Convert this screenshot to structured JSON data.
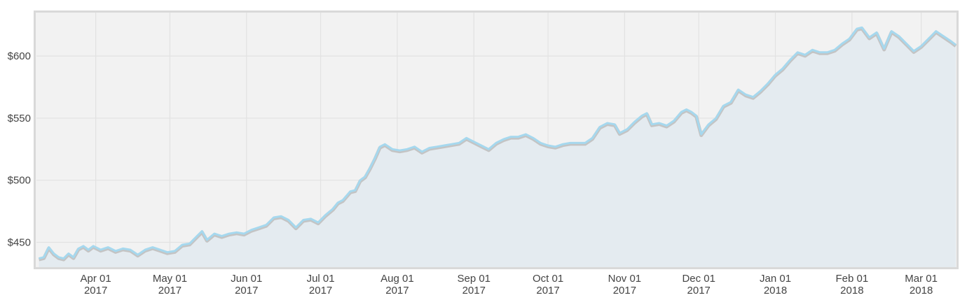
{
  "chart_data": {
    "type": "area",
    "title": "",
    "xlabel": "",
    "ylabel": "",
    "x_range": [
      "2017-03-08",
      "2018-03-15"
    ],
    "ylim": [
      430,
      635
    ],
    "grid": true,
    "colors": {
      "line": "#a6d8ee",
      "line_shadow": "#c4c4c4",
      "fill": "#e4ebf0",
      "plot_bg": "#f2f2f2",
      "frame": "#d9d9d9",
      "grid": "#e2e2e2"
    },
    "y_ticks": [
      {
        "value": 450,
        "label": "$450"
      },
      {
        "value": 500,
        "label": "$500"
      },
      {
        "value": 550,
        "label": "$550"
      },
      {
        "value": 600,
        "label": "$600"
      }
    ],
    "x_ticks": [
      {
        "date": "2017-04-01",
        "line1": "Apr 01",
        "line2": "2017"
      },
      {
        "date": "2017-05-01",
        "line1": "May 01",
        "line2": "2017"
      },
      {
        "date": "2017-06-01",
        "line1": "Jun 01",
        "line2": "2017"
      },
      {
        "date": "2017-07-01",
        "line1": "Jul 01",
        "line2": "2017"
      },
      {
        "date": "2017-08-01",
        "line1": "Aug 01",
        "line2": "2017"
      },
      {
        "date": "2017-09-01",
        "line1": "Sep 01",
        "line2": "2017"
      },
      {
        "date": "2017-10-01",
        "line1": "Oct 01",
        "line2": "2017"
      },
      {
        "date": "2017-11-01",
        "line1": "Nov 01",
        "line2": "2017"
      },
      {
        "date": "2017-12-01",
        "line1": "Dec 01",
        "line2": "2017"
      },
      {
        "date": "2018-01-01",
        "line1": "Jan 01",
        "line2": "2018"
      },
      {
        "date": "2018-02-01",
        "line1": "Feb 01",
        "line2": "2018"
      },
      {
        "date": "2018-03-01",
        "line1": "Mar 01",
        "line2": "2018"
      }
    ],
    "series": [
      {
        "points": [
          [
            "2017-03-09",
            437
          ],
          [
            "2017-03-11",
            438
          ],
          [
            "2017-03-13",
            446
          ],
          [
            "2017-03-15",
            441
          ],
          [
            "2017-03-17",
            438
          ],
          [
            "2017-03-19",
            437
          ],
          [
            "2017-03-21",
            441
          ],
          [
            "2017-03-23",
            438
          ],
          [
            "2017-03-25",
            445
          ],
          [
            "2017-03-27",
            447
          ],
          [
            "2017-03-29",
            444
          ],
          [
            "2017-03-31",
            447
          ],
          [
            "2017-04-03",
            444
          ],
          [
            "2017-04-06",
            446
          ],
          [
            "2017-04-09",
            443
          ],
          [
            "2017-04-12",
            445
          ],
          [
            "2017-04-15",
            444
          ],
          [
            "2017-04-18",
            440
          ],
          [
            "2017-04-21",
            444
          ],
          [
            "2017-04-24",
            446
          ],
          [
            "2017-04-27",
            444
          ],
          [
            "2017-04-30",
            442
          ],
          [
            "2017-05-03",
            443
          ],
          [
            "2017-05-06",
            448
          ],
          [
            "2017-05-09",
            449
          ],
          [
            "2017-05-12",
            455
          ],
          [
            "2017-05-14",
            459
          ],
          [
            "2017-05-16",
            452
          ],
          [
            "2017-05-19",
            457
          ],
          [
            "2017-05-22",
            455
          ],
          [
            "2017-05-25",
            457
          ],
          [
            "2017-05-28",
            458
          ],
          [
            "2017-05-31",
            457
          ],
          [
            "2017-06-03",
            460
          ],
          [
            "2017-06-06",
            462
          ],
          [
            "2017-06-09",
            464
          ],
          [
            "2017-06-12",
            470
          ],
          [
            "2017-06-15",
            471
          ],
          [
            "2017-06-18",
            468
          ],
          [
            "2017-06-21",
            462
          ],
          [
            "2017-06-24",
            468
          ],
          [
            "2017-06-27",
            469
          ],
          [
            "2017-06-30",
            466
          ],
          [
            "2017-07-03",
            472
          ],
          [
            "2017-07-06",
            477
          ],
          [
            "2017-07-08",
            482
          ],
          [
            "2017-07-10",
            484
          ],
          [
            "2017-07-13",
            491
          ],
          [
            "2017-07-15",
            492
          ],
          [
            "2017-07-17",
            500
          ],
          [
            "2017-07-19",
            503
          ],
          [
            "2017-07-21",
            510
          ],
          [
            "2017-07-23",
            518
          ],
          [
            "2017-07-25",
            527
          ],
          [
            "2017-07-27",
            529
          ],
          [
            "2017-07-30",
            525
          ],
          [
            "2017-08-02",
            524
          ],
          [
            "2017-08-05",
            525
          ],
          [
            "2017-08-08",
            527
          ],
          [
            "2017-08-11",
            523
          ],
          [
            "2017-08-14",
            526
          ],
          [
            "2017-08-17",
            527
          ],
          [
            "2017-08-20",
            528
          ],
          [
            "2017-08-23",
            529
          ],
          [
            "2017-08-26",
            530
          ],
          [
            "2017-08-29",
            534
          ],
          [
            "2017-09-01",
            531
          ],
          [
            "2017-09-04",
            528
          ],
          [
            "2017-09-07",
            525
          ],
          [
            "2017-09-10",
            530
          ],
          [
            "2017-09-13",
            533
          ],
          [
            "2017-09-16",
            535
          ],
          [
            "2017-09-19",
            535
          ],
          [
            "2017-09-22",
            537
          ],
          [
            "2017-09-25",
            534
          ],
          [
            "2017-09-28",
            530
          ],
          [
            "2017-10-01",
            528
          ],
          [
            "2017-10-04",
            527
          ],
          [
            "2017-10-07",
            529
          ],
          [
            "2017-10-10",
            530
          ],
          [
            "2017-10-13",
            530
          ],
          [
            "2017-10-16",
            530
          ],
          [
            "2017-10-19",
            534
          ],
          [
            "2017-10-22",
            543
          ],
          [
            "2017-10-25",
            546
          ],
          [
            "2017-10-28",
            545
          ],
          [
            "2017-10-30",
            538
          ],
          [
            "2017-11-02",
            541
          ],
          [
            "2017-11-05",
            547
          ],
          [
            "2017-11-08",
            552
          ],
          [
            "2017-11-10",
            554
          ],
          [
            "2017-11-12",
            545
          ],
          [
            "2017-11-15",
            546
          ],
          [
            "2017-11-18",
            544
          ],
          [
            "2017-11-21",
            548
          ],
          [
            "2017-11-24",
            555
          ],
          [
            "2017-11-26",
            557
          ],
          [
            "2017-11-28",
            555
          ],
          [
            "2017-11-30",
            552
          ],
          [
            "2017-12-02",
            537
          ],
          [
            "2017-12-05",
            545
          ],
          [
            "2017-12-08",
            550
          ],
          [
            "2017-12-11",
            560
          ],
          [
            "2017-12-14",
            563
          ],
          [
            "2017-12-17",
            573
          ],
          [
            "2017-12-20",
            569
          ],
          [
            "2017-12-23",
            567
          ],
          [
            "2017-12-26",
            572
          ],
          [
            "2017-12-29",
            578
          ],
          [
            "2018-01-01",
            585
          ],
          [
            "2018-01-04",
            590
          ],
          [
            "2018-01-07",
            597
          ],
          [
            "2018-01-10",
            603
          ],
          [
            "2018-01-13",
            601
          ],
          [
            "2018-01-16",
            605
          ],
          [
            "2018-01-19",
            603
          ],
          [
            "2018-01-22",
            603
          ],
          [
            "2018-01-25",
            605
          ],
          [
            "2018-01-28",
            610
          ],
          [
            "2018-01-31",
            614
          ],
          [
            "2018-02-03",
            622
          ],
          [
            "2018-02-05",
            623
          ],
          [
            "2018-02-08",
            615
          ],
          [
            "2018-02-11",
            619
          ],
          [
            "2018-02-14",
            606
          ],
          [
            "2018-02-17",
            620
          ],
          [
            "2018-02-20",
            616
          ],
          [
            "2018-02-23",
            610
          ],
          [
            "2018-02-26",
            604
          ],
          [
            "2018-03-01",
            608
          ],
          [
            "2018-03-04",
            614
          ],
          [
            "2018-03-07",
            620
          ],
          [
            "2018-03-10",
            616
          ],
          [
            "2018-03-13",
            612
          ],
          [
            "2018-03-15",
            609
          ]
        ]
      }
    ]
  }
}
